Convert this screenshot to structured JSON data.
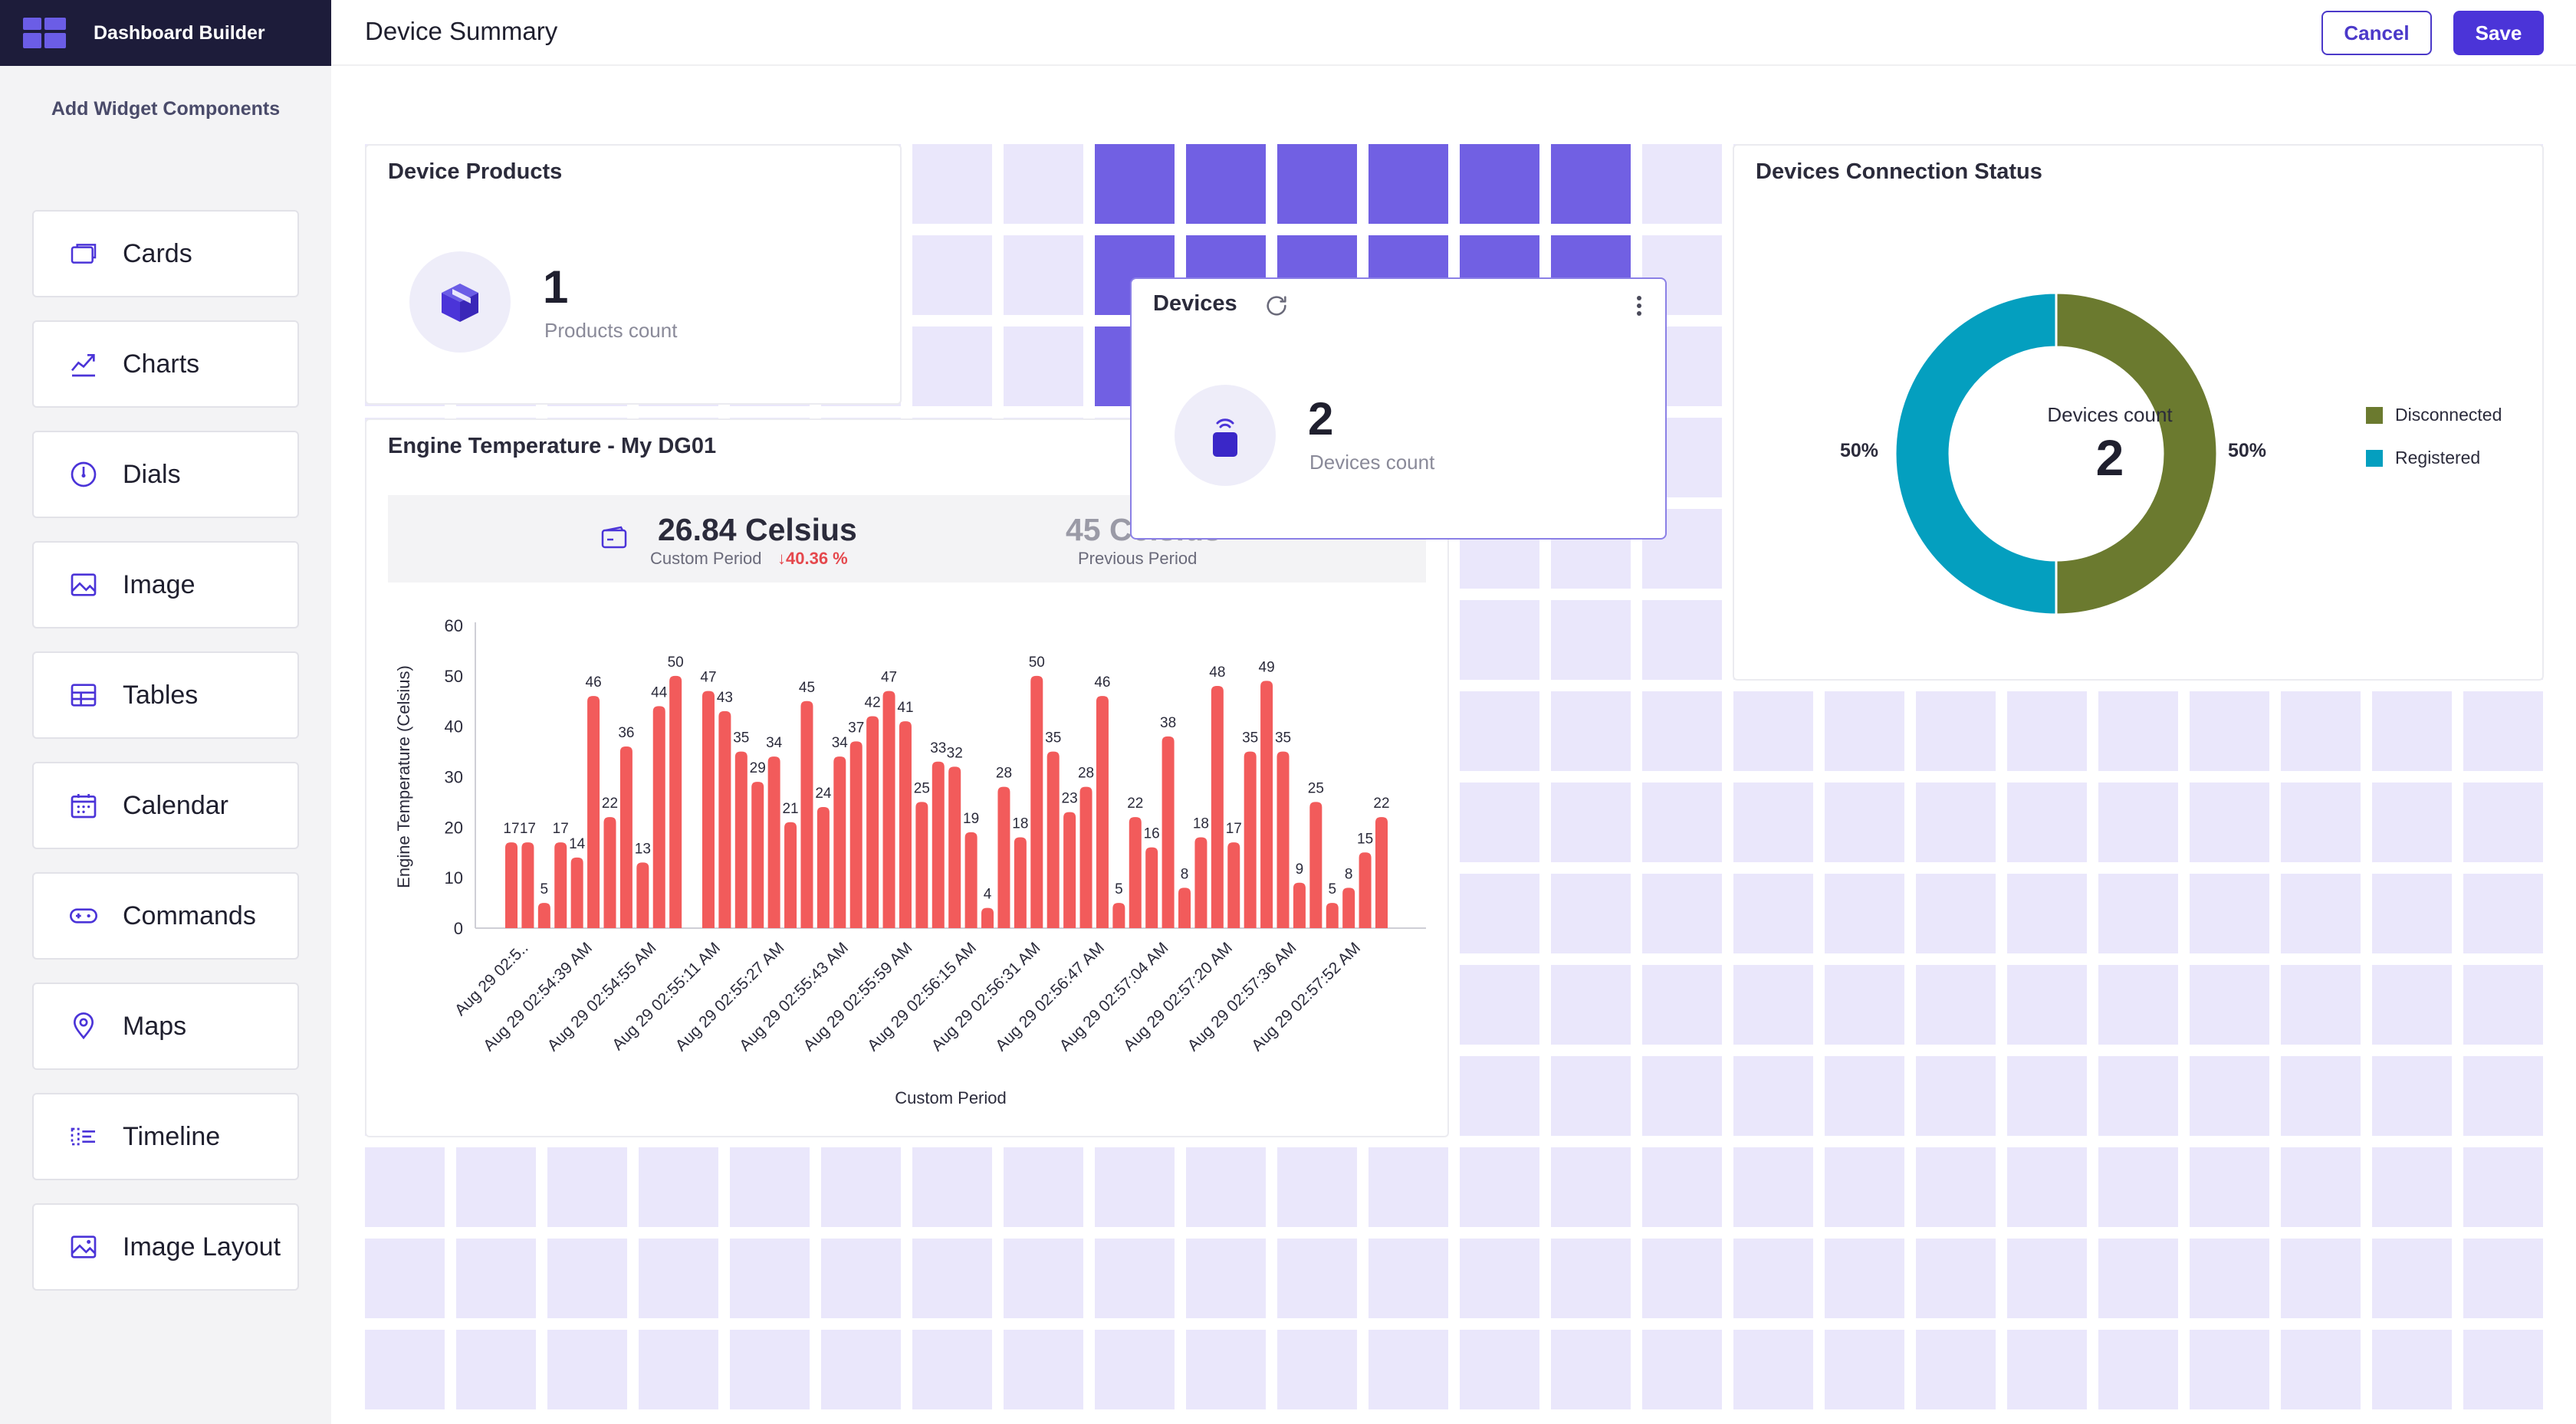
{
  "app": {
    "title": "Dashboard Builder"
  },
  "sidebar": {
    "subtitle": "Add Widget Components",
    "items": [
      {
        "label": "Cards",
        "icon": "card-icon"
      },
      {
        "label": "Charts",
        "icon": "chart-icon"
      },
      {
        "label": "Dials",
        "icon": "dial-icon"
      },
      {
        "label": "Image",
        "icon": "image-icon"
      },
      {
        "label": "Tables",
        "icon": "table-icon"
      },
      {
        "label": "Calendar",
        "icon": "calendar-icon"
      },
      {
        "label": "Commands",
        "icon": "gamepad-icon"
      },
      {
        "label": "Maps",
        "icon": "map-pin-icon"
      },
      {
        "label": "Timeline",
        "icon": "timeline-icon"
      },
      {
        "label": "Image Layout",
        "icon": "image-layout-icon"
      }
    ]
  },
  "header": {
    "title": "Device Summary",
    "cancel_label": "Cancel",
    "save_label": "Save"
  },
  "colors": {
    "accent": "#4b34d8",
    "bar": "#f25b5b",
    "disconnected": "#6b7a2f",
    "registered": "#049fbf",
    "delta": "#e5484d"
  },
  "widgets": {
    "products": {
      "title": "Device Products",
      "value": "1",
      "caption": "Products count",
      "icon": "cube-icon"
    },
    "devices": {
      "title": "Devices",
      "value": "2",
      "caption": "Devices count",
      "icon": "device-icon"
    },
    "connection": {
      "title": "Devices Connection Status",
      "center_label": "Devices count",
      "center_value": "2",
      "left_pct": "50%",
      "right_pct": "50%"
    },
    "engine": {
      "title": "Engine Temperature - My DG01",
      "current_value": "26.84 Celsius",
      "current_label": "Custom Period",
      "delta": "↓40.36 %",
      "previous_value": "45 Celsius",
      "previous_label": "Previous Period"
    }
  },
  "chart_data": [
    {
      "type": "bar",
      "title": "Engine Temperature - My DG01",
      "xlabel": "Custom Period",
      "ylabel": "Engine Temperature (Celsius)",
      "ylim": [
        0,
        60
      ],
      "yticks": [
        "0",
        "10",
        "20",
        "30",
        "40",
        "50",
        "60"
      ],
      "xtick_labels": [
        "Aug 29 02:5..",
        "Aug 29 02:54:39 AM",
        "Aug 29 02:54:55 AM",
        "Aug 29 02:55:11 AM",
        "Aug 29 02:55:27 AM",
        "Aug 29 02:55:43 AM",
        "Aug 29 02:55:59 AM",
        "Aug 29 02:56:15 AM",
        "Aug 29 02:56:31 AM",
        "Aug 29 02:56:47 AM",
        "Aug 29 02:57:04 AM",
        "Aug 29 02:57:20 AM",
        "Aug 29 02:57:36 AM",
        "Aug 29 02:57:52 AM"
      ],
      "values": [
        17,
        17,
        5,
        17,
        14,
        46,
        22,
        36,
        13,
        44,
        50,
        null,
        47,
        43,
        35,
        29,
        34,
        21,
        45,
        24,
        34,
        37,
        42,
        47,
        41,
        25,
        33,
        32,
        19,
        4,
        28,
        18,
        50,
        35,
        23,
        28,
        46,
        5,
        22,
        16,
        38,
        8,
        18,
        48,
        17,
        35,
        49,
        35,
        9,
        25,
        5,
        8,
        15,
        22
      ],
      "grid": false,
      "legend": "none"
    },
    {
      "type": "pie",
      "title": "Devices Connection Status",
      "donut": true,
      "labels": [
        "Disconnected",
        "Registered"
      ],
      "values": [
        50,
        50
      ],
      "colors": [
        "#6b7a2f",
        "#049fbf"
      ],
      "legend": "right"
    }
  ]
}
